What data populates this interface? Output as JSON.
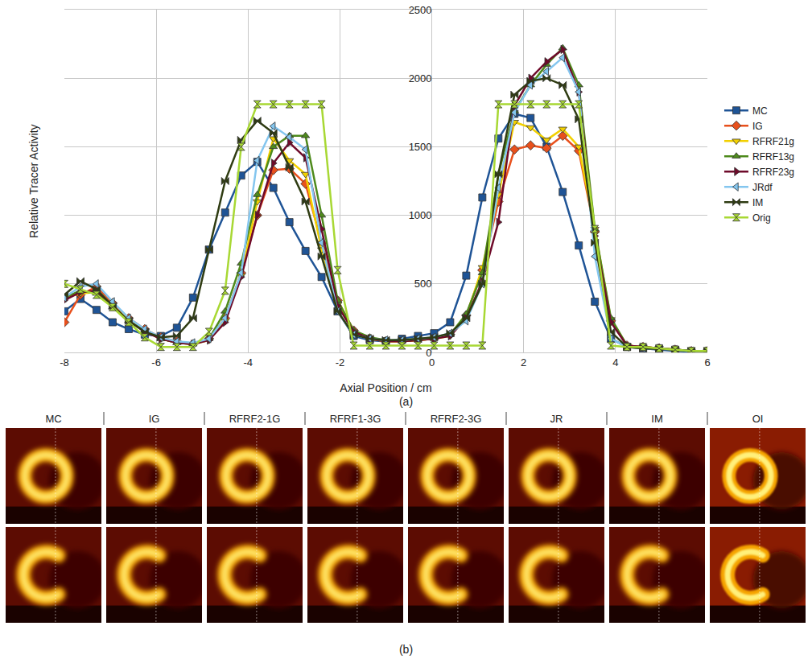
{
  "chart_data": {
    "type": "line",
    "x_label": "Axial Position / cm",
    "y_label": "Relative Tracer Activity",
    "annotations": [
      "(a)"
    ],
    "x": [
      -8,
      -7.65,
      -7.3,
      -6.95,
      -6.6,
      -6.25,
      -5.9,
      -5.55,
      -5.2,
      -4.85,
      -4.5,
      -4.15,
      -3.8,
      -3.45,
      -3.1,
      -2.75,
      -2.4,
      -2.05,
      -1.7,
      -1.35,
      -1,
      -0.65,
      -0.3,
      0.05,
      0.4,
      0.75,
      1.1,
      1.45,
      1.8,
      2.15,
      2.5,
      2.85,
      3.2,
      3.55,
      3.9,
      4.25,
      4.6,
      4.95,
      5.3,
      5.65,
      6
    ],
    "series": [
      {
        "name": "MC",
        "color": "#1f5496",
        "marker": "square",
        "values": [
          300,
          390,
          310,
          220,
          170,
          130,
          120,
          180,
          400,
          750,
          1020,
          1290,
          1390,
          1200,
          950,
          740,
          550,
          300,
          120,
          90,
          80,
          100,
          120,
          140,
          220,
          560,
          1130,
          1560,
          1740,
          1710,
          1500,
          1170,
          780,
          370,
          100,
          40,
          30,
          20,
          10,
          5,
          5
        ]
      },
      {
        "name": "IG",
        "color": "#e8501c",
        "marker": "diamond",
        "values": [
          220,
          420,
          480,
          360,
          250,
          170,
          110,
          80,
          60,
          100,
          250,
          580,
          1000,
          1330,
          1340,
          1230,
          800,
          380,
          160,
          100,
          80,
          80,
          90,
          100,
          130,
          270,
          600,
          1100,
          1480,
          1510,
          1490,
          1580,
          1470,
          880,
          230,
          50,
          40,
          30,
          20,
          10,
          10
        ]
      },
      {
        "name": "RFRF21g",
        "color": "#f2d000",
        "marker": "triangle-down",
        "values": [
          400,
          430,
          440,
          340,
          240,
          160,
          100,
          70,
          60,
          90,
          230,
          560,
          1100,
          1560,
          1400,
          1300,
          750,
          350,
          150,
          100,
          80,
          80,
          90,
          100,
          120,
          260,
          620,
          1150,
          1680,
          1640,
          1550,
          1630,
          1500,
          900,
          240,
          50,
          40,
          30,
          20,
          10,
          10
        ]
      },
      {
        "name": "RFRF13g",
        "color": "#4e8a1c",
        "marker": "triangle-up",
        "values": [
          400,
          450,
          430,
          330,
          230,
          160,
          100,
          70,
          60,
          100,
          300,
          650,
          1150,
          1500,
          1580,
          1580,
          1000,
          380,
          160,
          110,
          90,
          90,
          100,
          110,
          130,
          280,
          580,
          1300,
          1760,
          1950,
          2100,
          2220,
          1950,
          900,
          250,
          50,
          40,
          30,
          20,
          10,
          10
        ]
      },
      {
        "name": "RFRF23g",
        "color": "#6e0a2a",
        "marker": "triangle-right",
        "values": [
          380,
          440,
          450,
          340,
          230,
          150,
          100,
          70,
          60,
          90,
          220,
          550,
          1000,
          1380,
          1530,
          1420,
          900,
          340,
          150,
          100,
          80,
          80,
          90,
          100,
          120,
          250,
          520,
          950,
          1800,
          2000,
          2120,
          2210,
          1900,
          850,
          220,
          50,
          40,
          30,
          20,
          10,
          10
        ]
      },
      {
        "name": "JRdf",
        "color": "#84c6ef",
        "marker": "triangle-left",
        "values": [
          400,
          480,
          500,
          370,
          250,
          170,
          110,
          80,
          70,
          100,
          250,
          580,
          1400,
          1650,
          1570,
          1480,
          800,
          300,
          130,
          100,
          90,
          90,
          100,
          110,
          140,
          230,
          500,
          1200,
          1750,
          1950,
          2050,
          2150,
          1900,
          700,
          100,
          40,
          30,
          25,
          20,
          10,
          10
        ]
      },
      {
        "name": "IM",
        "color": "#2f3c12",
        "marker": "bowtie",
        "values": [
          420,
          520,
          460,
          340,
          230,
          150,
          110,
          120,
          250,
          750,
          1250,
          1550,
          1690,
          1600,
          1350,
          1100,
          700,
          300,
          130,
          100,
          90,
          90,
          100,
          110,
          140,
          250,
          500,
          1300,
          1880,
          1980,
          2000,
          1950,
          1700,
          800,
          150,
          40,
          30,
          25,
          20,
          10,
          10
        ]
      },
      {
        "name": "Orig",
        "color": "#a8d834",
        "marker": "hourglass",
        "values": [
          500,
          460,
          420,
          330,
          220,
          110,
          40,
          40,
          40,
          150,
          450,
          1500,
          1810,
          1810,
          1810,
          1810,
          1810,
          600,
          50,
          50,
          50,
          50,
          50,
          50,
          50,
          50,
          50,
          1810,
          1810,
          1810,
          1810,
          1810,
          1810,
          900,
          50,
          40,
          40,
          30,
          20,
          10,
          10
        ]
      }
    ],
    "xlim": [
      -8,
      6
    ],
    "xticks": [
      -8,
      -6,
      -4,
      -2,
      0,
      2,
      4,
      6
    ],
    "ylim": [
      0,
      2500
    ],
    "yticks": [
      0,
      500,
      1000,
      1500,
      2000,
      2500
    ],
    "grid": true,
    "legend": "right"
  },
  "image_panel": {
    "label": "(b)",
    "columns": [
      "MC",
      "IG",
      "RFRF2-1G",
      "RFRF1-3G",
      "RFRF2-3G",
      "JR",
      "IM",
      "OI"
    ]
  }
}
